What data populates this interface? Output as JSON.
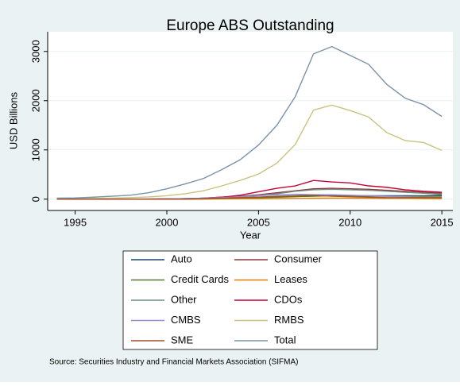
{
  "chart_data": {
    "type": "line",
    "title": "Europe ABS Outstanding",
    "x_label": "Year",
    "y_label": "USD Billions",
    "note": "Source: Securities Industry and Financial Markets Association (SIFMA)",
    "x": [
      1994,
      1995,
      1996,
      1997,
      1998,
      1999,
      2000,
      2001,
      2002,
      2003,
      2004,
      2005,
      2006,
      2007,
      2008,
      2009,
      2010,
      2011,
      2012,
      2013,
      2014,
      2015
    ],
    "xlim": [
      1993.5,
      2015.6
    ],
    "xticks": [
      1995,
      2000,
      2005,
      2010,
      2015
    ],
    "ylim": [
      -230,
      3400
    ],
    "yticks": [
      0,
      1000,
      2000,
      3000
    ],
    "grid": true,
    "series": [
      {
        "name": "Auto",
        "color": "#1a476f",
        "values": [
          0,
          0,
          0,
          0,
          0,
          0,
          0,
          5,
          10,
          20,
          30,
          40,
          50,
          60,
          70,
          70,
          70,
          70,
          70,
          70,
          70,
          80
        ]
      },
      {
        "name": "Consumer",
        "color": "#90353b",
        "values": [
          0,
          0,
          0,
          0,
          0,
          0,
          5,
          10,
          20,
          40,
          60,
          90,
          130,
          170,
          210,
          220,
          210,
          200,
          180,
          160,
          140,
          120
        ]
      },
      {
        "name": "Credit Cards",
        "color": "#55752f",
        "values": [
          0,
          0,
          0,
          0,
          0,
          0,
          0,
          0,
          5,
          10,
          20,
          30,
          40,
          50,
          60,
          70,
          70,
          60,
          60,
          60,
          60,
          60
        ]
      },
      {
        "name": "Leases",
        "color": "#e37e00",
        "values": [
          0,
          0,
          0,
          0,
          0,
          0,
          0,
          0,
          2,
          5,
          8,
          10,
          12,
          15,
          18,
          20,
          20,
          18,
          15,
          15,
          12,
          10
        ]
      },
      {
        "name": "Other",
        "color": "#6e8e84",
        "values": [
          0,
          0,
          0,
          0,
          0,
          0,
          5,
          10,
          20,
          30,
          50,
          80,
          110,
          160,
          190,
          200,
          190,
          180,
          160,
          140,
          120,
          100
        ]
      },
      {
        "name": "CDOs",
        "color": "#c10534",
        "values": [
          0,
          0,
          0,
          0,
          0,
          2,
          5,
          10,
          20,
          40,
          80,
          150,
          220,
          270,
          380,
          350,
          330,
          270,
          240,
          190,
          160,
          140
        ]
      },
      {
        "name": "CMBS",
        "color": "#938dd2",
        "values": [
          0,
          0,
          0,
          0,
          0,
          0,
          5,
          10,
          20,
          30,
          50,
          70,
          90,
          100,
          90,
          90,
          80,
          70,
          60,
          50,
          40,
          30
        ]
      },
      {
        "name": "RMBS",
        "color": "#cac27e",
        "values": [
          5,
          10,
          15,
          20,
          30,
          45,
          70,
          110,
          170,
          270,
          380,
          510,
          730,
          1110,
          1810,
          1910,
          1800,
          1670,
          1350,
          1190,
          1150,
          990
        ]
      },
      {
        "name": "SME",
        "color": "#a0522d",
        "values": [
          0,
          0,
          0,
          0,
          0,
          0,
          0,
          0,
          10,
          20,
          30,
          40,
          60,
          70,
          80,
          60,
          50,
          40,
          30,
          30,
          30,
          30
        ]
      },
      {
        "name": "Total",
        "color": "#7b92a8",
        "values": [
          20,
          25,
          40,
          60,
          80,
          130,
          210,
          310,
          420,
          600,
          800,
          1100,
          1500,
          2080,
          2950,
          3100,
          2920,
          2740,
          2330,
          2050,
          1920,
          1680
        ]
      }
    ]
  }
}
